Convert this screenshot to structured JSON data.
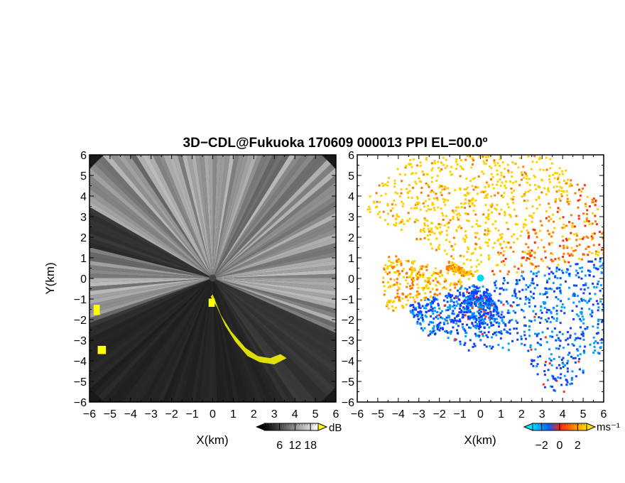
{
  "chart_data": [
    {
      "type": "heatmap",
      "title": "3D−CDL@Fukuoka 170609 000013 PPI EL=00.0º",
      "xlabel": "X(km)",
      "ylabel": "Y(km)",
      "xlim": [
        -6,
        6
      ],
      "ylim": [
        -6,
        6
      ],
      "x_ticks": [
        "−6",
        "−5",
        "−4",
        "−3",
        "−2",
        "−1",
        "0",
        "1",
        "2",
        "3",
        "4",
        "5",
        "6"
      ],
      "y_ticks": [
        "6",
        "5",
        "4",
        "3",
        "2",
        "1",
        "0",
        "−1",
        "−2",
        "−3",
        "−4",
        "−5",
        "−6"
      ],
      "colorbar": {
        "unit": "dB",
        "ticks": [
          "6",
          "12",
          "18"
        ],
        "range": [
          0,
          21
        ],
        "colors": [
          "#000000",
          "#ffffff"
        ]
      },
      "highlight_color": "#ffff00"
    },
    {
      "type": "heatmap",
      "xlabel": "X(km)",
      "xlim": [
        -6,
        6
      ],
      "ylim": [
        -6,
        6
      ],
      "x_ticks": [
        "−6",
        "−5",
        "−4",
        "−3",
        "−2",
        "−1",
        "0",
        "1",
        "2",
        "3",
        "4",
        "5",
        "6"
      ],
      "y_ticks": [
        "6",
        "5",
        "4",
        "3",
        "2",
        "1",
        "0",
        "−1",
        "−2",
        "−3",
        "−4",
        "−5",
        "−6"
      ],
      "colorbar": {
        "unit": "ms⁻¹",
        "ticks": [
          "−2",
          "0",
          "2"
        ],
        "range": [
          -3,
          3
        ],
        "colors": [
          "#00e0ff",
          "#0060ff",
          "#ff2010",
          "#ff8000",
          "#ffe000"
        ]
      }
    }
  ]
}
